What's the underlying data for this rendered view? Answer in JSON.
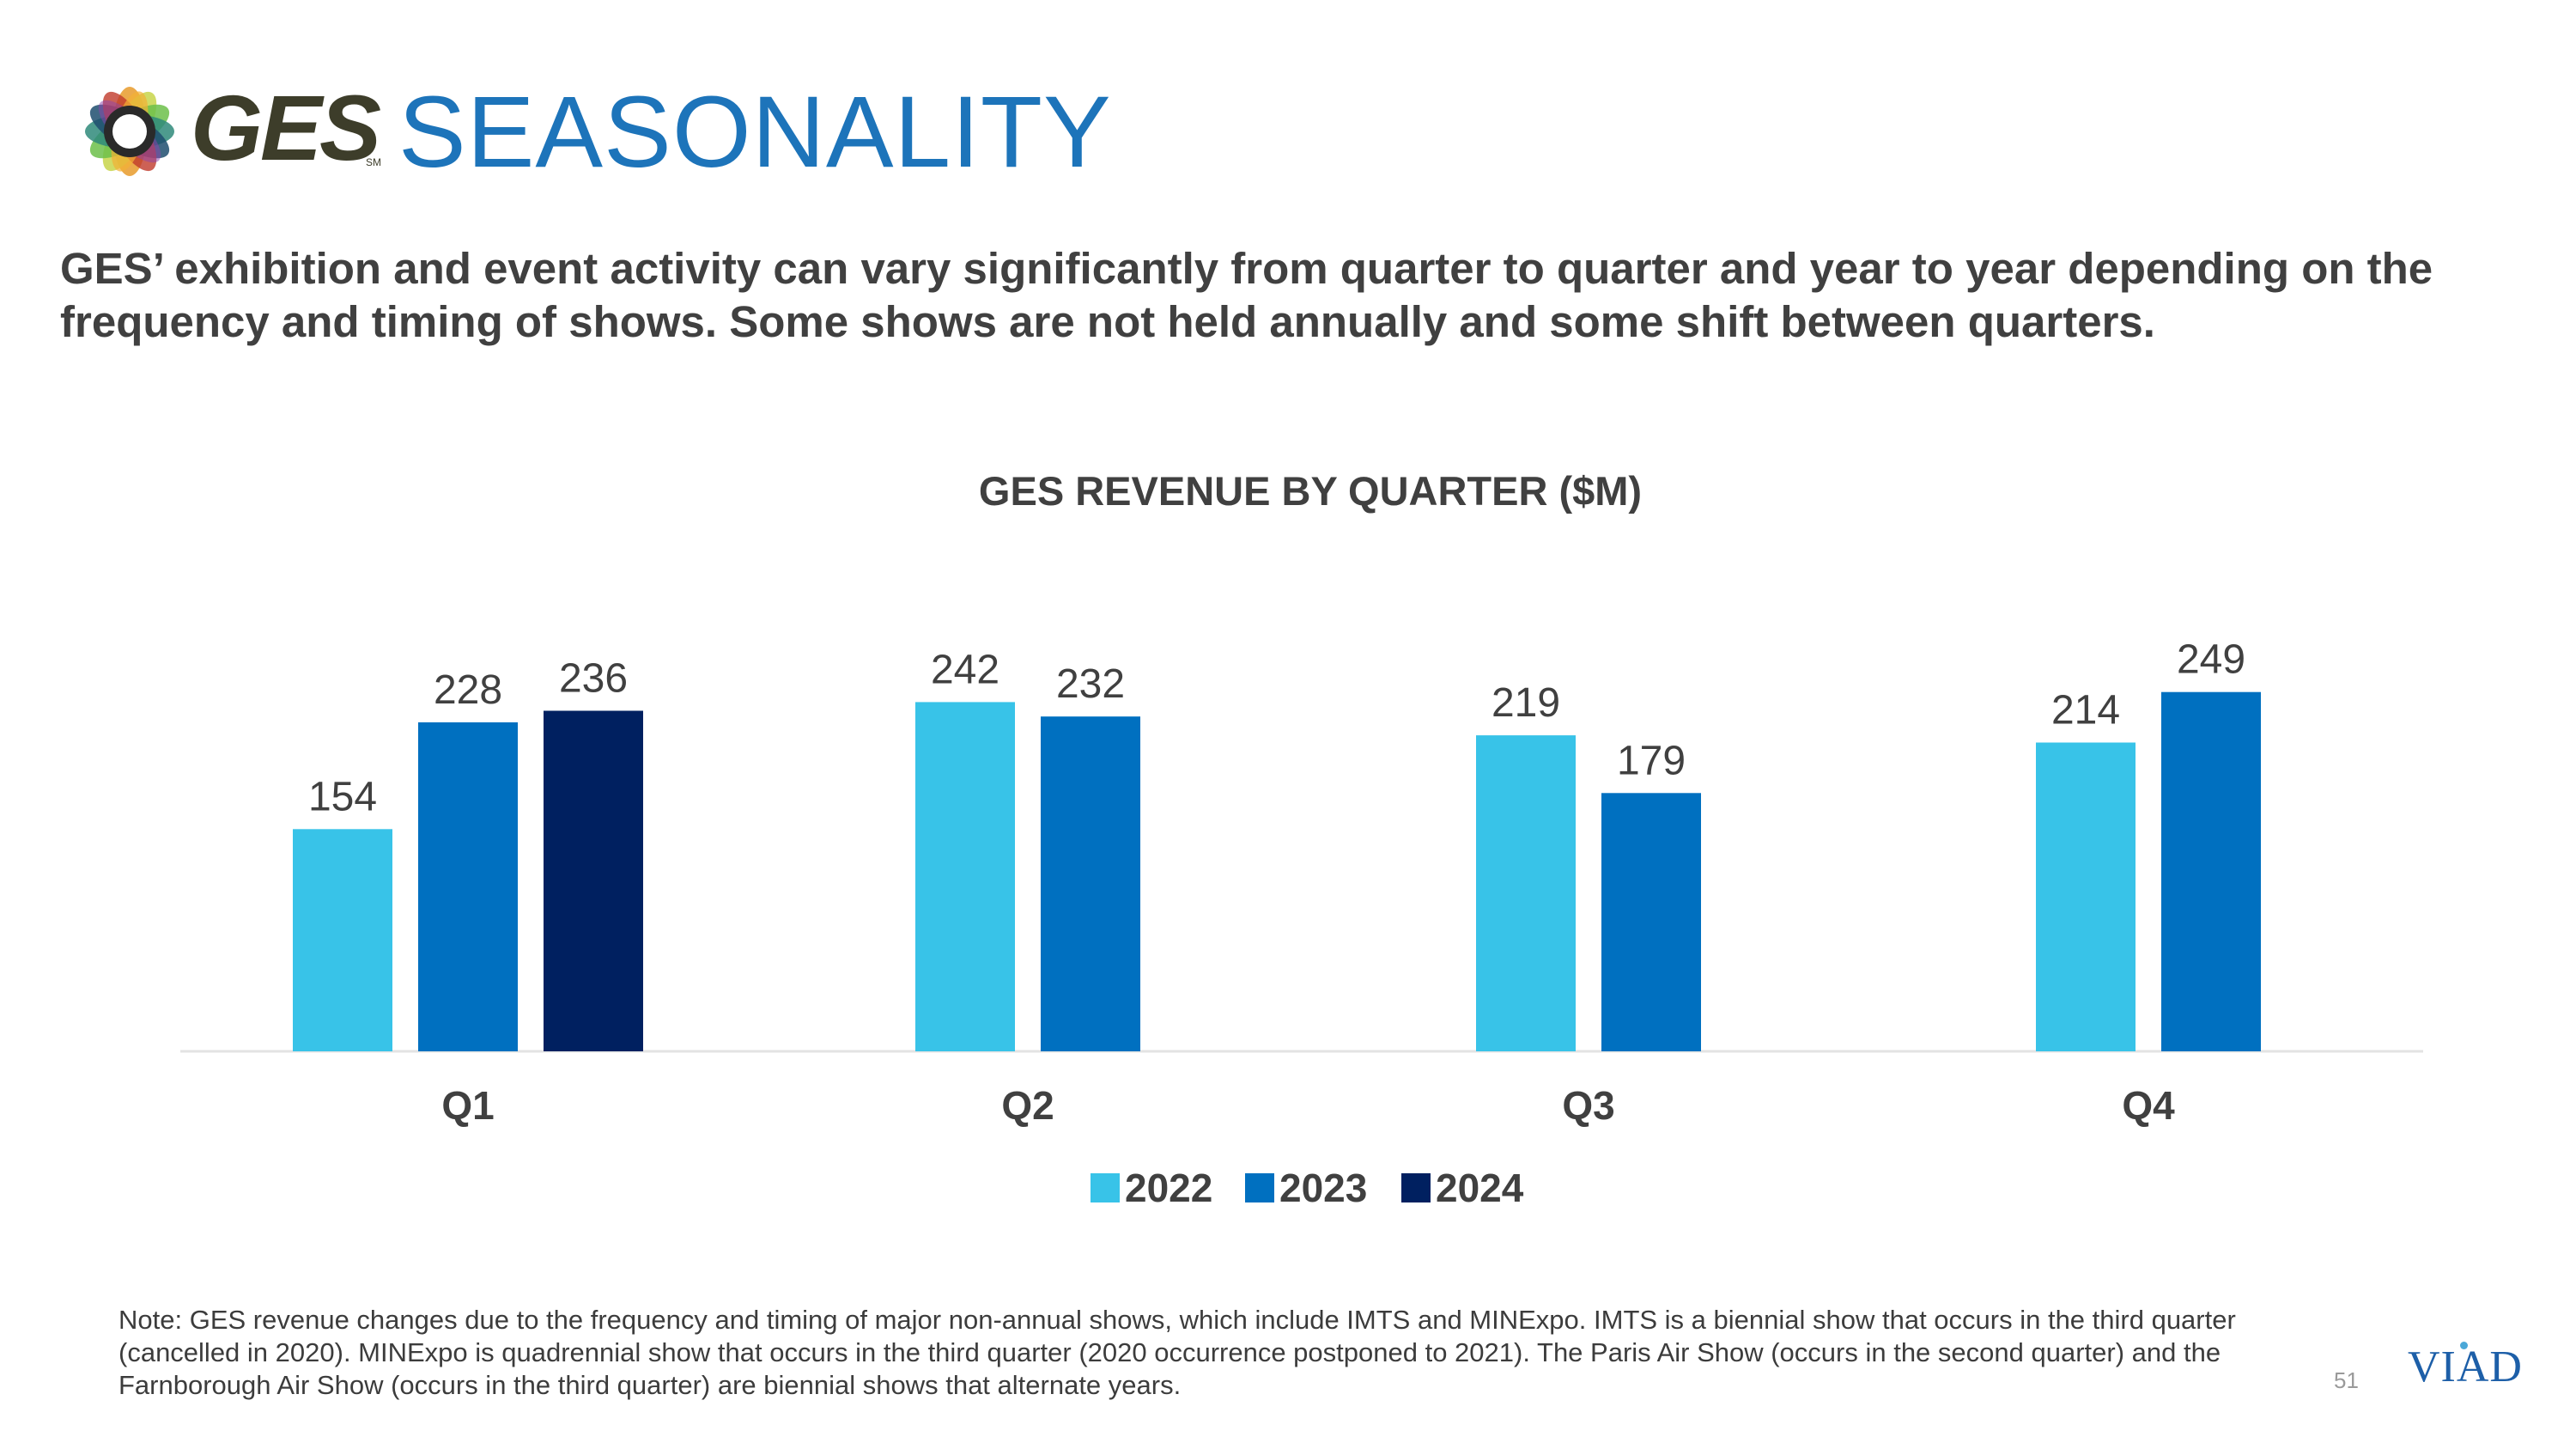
{
  "header": {
    "logo_text": "GES",
    "logo_sm": "SM",
    "title": "SEASONALITY"
  },
  "subtitle": "GES’ exhibition and event activity can vary significantly from quarter to quarter and year to year depending on the frequency and timing of shows. Some shows are not held annually and some shift between quarters.",
  "colors": {
    "y2022": "#38c3e8",
    "y2023": "#0070c0",
    "y2024": "#002060",
    "title": "#1d74ba",
    "axis": "#e3e3e3"
  },
  "chart_data": {
    "type": "bar",
    "title": "GES REVENUE BY QUARTER ($M)",
    "categories": [
      "Q1",
      "Q2",
      "Q3",
      "Q4"
    ],
    "series": [
      {
        "name": "2022",
        "values": [
          154,
          242,
          219,
          214
        ]
      },
      {
        "name": "2023",
        "values": [
          228,
          232,
          179,
          249
        ]
      },
      {
        "name": "2024",
        "values": [
          236,
          null,
          null,
          null
        ]
      }
    ],
    "xlabel": "",
    "ylabel": "",
    "ylim": [
      0,
      260
    ],
    "grid": false,
    "legend": "bottom-center"
  },
  "footnote": "Note: GES revenue changes due to the frequency and timing of major non-annual shows, which include IMTS and MINExpo. IMTS is a biennial show that occurs in the third quarter (cancelled in 2020). MINExpo is quadrennial show that occurs in the third quarter (2020 occurrence postponed to 2021). The Paris Air Show (occurs in the second quarter) and the Farnborough Air Show (occurs in the third quarter) are biennial shows that alternate years.",
  "footer": {
    "page_number": "51",
    "brand": "VIAD"
  }
}
